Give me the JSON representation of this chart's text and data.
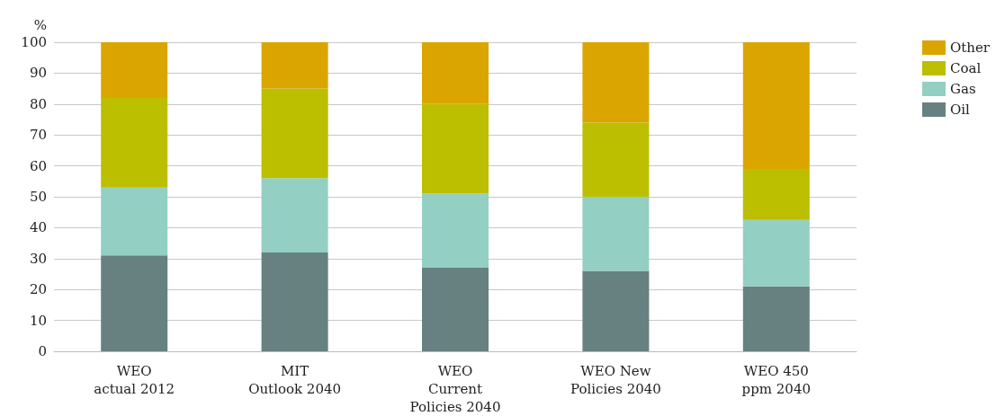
{
  "chart_data": {
    "type": "bar",
    "stacked": true,
    "ylabel": "%",
    "categories": [
      "WEO\nactual 2012",
      "MIT\nOutlook 2040",
      "WEO\nCurrent\nPolicies 2040",
      "WEO New\nPolicies 2040",
      "WEO 450\nppm 2040"
    ],
    "series": [
      {
        "name": "Oil",
        "color": "#678180",
        "values": [
          31,
          32,
          27,
          26,
          21
        ]
      },
      {
        "name": "Gas",
        "color": "#93cfc3",
        "values": [
          22,
          24,
          24,
          24,
          21.5
        ]
      },
      {
        "name": "Coal",
        "color": "#bcbe00",
        "values": [
          29,
          29,
          29,
          24,
          16.5
        ]
      },
      {
        "name": "Other",
        "color": "#dba500",
        "values": [
          18,
          15,
          20,
          26,
          41
        ]
      }
    ],
    "ylim": [
      0,
      100
    ],
    "yticks": [
      0,
      10,
      20,
      30,
      40,
      50,
      60,
      70,
      80,
      90,
      100
    ],
    "grid": "y",
    "legend": "top right"
  }
}
